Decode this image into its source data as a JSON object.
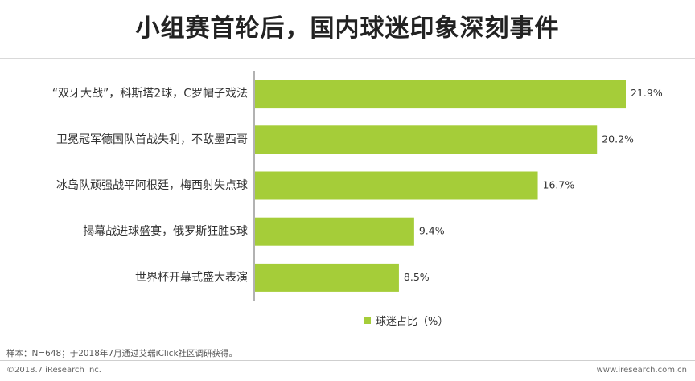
{
  "title": "小组赛首轮后，国内球迷印象深刻事件",
  "legend_label": "球迷占比（%）",
  "note": "样本：N=648；于2018年7月通过艾瑞iClick社区调研获得。",
  "footer": {
    "copyright": "©2018.7 iResearch Inc.",
    "website": "www.iresearch.com.cn"
  },
  "colors": {
    "bar": "#a5cd39",
    "axis": "#666666"
  },
  "chart_data": {
    "type": "bar",
    "orientation": "horizontal",
    "categories": [
      "“双牙大战”，科斯塔2球，C罗帽子戏法",
      "卫冕冠军德国队首战失利，不敌墨西哥",
      "冰岛队顽强战平阿根廷，梅西射失点球",
      "揭幕战进球盛宴，俄罗斯狂胜5球",
      "世界杯开幕式盛大表演"
    ],
    "series": [
      {
        "name": "球迷占比（%）",
        "values": [
          21.9,
          20.2,
          16.7,
          9.4,
          8.5
        ]
      }
    ],
    "value_labels": [
      "21.9%",
      "20.2%",
      "16.7%",
      "9.4%",
      "8.5%"
    ],
    "xlim": [
      0,
      21.9
    ],
    "grid": false,
    "legend_position": "bottom"
  }
}
